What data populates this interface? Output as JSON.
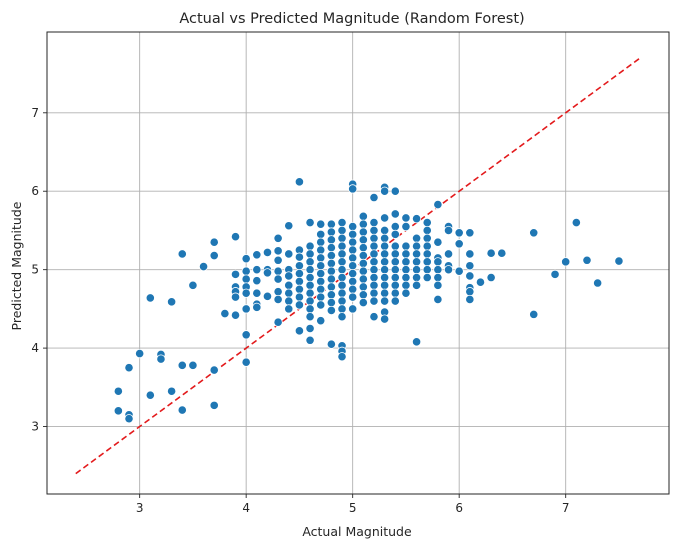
{
  "chart_data": {
    "type": "scatter",
    "title": "Actual vs Predicted Magnitude (Random Forest)",
    "xlabel": "Actual Magnitude",
    "ylabel": "Predicted Magnitude",
    "xlim": [
      2.13,
      7.97
    ],
    "ylim": [
      2.14,
      8.03
    ],
    "xticks": [
      3,
      4,
      5,
      6,
      7
    ],
    "yticks": [
      3,
      4,
      5,
      6,
      7
    ],
    "grid": true,
    "colors": {
      "points": "#1f77b4",
      "reference_line": "#e31a1c",
      "grid": "#b0b0b0"
    },
    "reference_line": {
      "style": "dashed",
      "x": [
        2.4,
        7.7
      ],
      "y": [
        2.4,
        7.7
      ]
    },
    "series": [
      {
        "points": [
          [
            2.8,
            3.45
          ],
          [
            2.8,
            3.2
          ],
          [
            2.9,
            3.15
          ],
          [
            2.9,
            3.1
          ],
          [
            2.9,
            3.75
          ],
          [
            3.0,
            3.93
          ],
          [
            3.1,
            4.64
          ],
          [
            3.1,
            3.4
          ],
          [
            3.2,
            3.92
          ],
          [
            3.2,
            3.86
          ],
          [
            3.3,
            4.59
          ],
          [
            3.3,
            3.45
          ],
          [
            3.4,
            5.2
          ],
          [
            3.4,
            3.78
          ],
          [
            3.4,
            3.21
          ],
          [
            3.5,
            4.8
          ],
          [
            3.5,
            3.78
          ],
          [
            3.6,
            5.04
          ],
          [
            3.7,
            5.35
          ],
          [
            3.7,
            5.18
          ],
          [
            3.7,
            3.72
          ],
          [
            3.7,
            3.27
          ],
          [
            3.8,
            4.44
          ],
          [
            3.9,
            5.42
          ],
          [
            3.9,
            4.94
          ],
          [
            3.9,
            4.78
          ],
          [
            3.9,
            4.72
          ],
          [
            3.9,
            4.65
          ],
          [
            3.9,
            4.42
          ],
          [
            4.0,
            5.14
          ],
          [
            4.0,
            4.98
          ],
          [
            4.0,
            4.88
          ],
          [
            4.0,
            4.78
          ],
          [
            4.0,
            4.7
          ],
          [
            4.0,
            4.5
          ],
          [
            4.0,
            4.17
          ],
          [
            4.0,
            3.82
          ],
          [
            4.1,
            5.19
          ],
          [
            4.1,
            5.0
          ],
          [
            4.1,
            4.86
          ],
          [
            4.1,
            4.7
          ],
          [
            4.1,
            4.56
          ],
          [
            4.1,
            4.52
          ],
          [
            4.2,
            5.22
          ],
          [
            4.2,
            5.0
          ],
          [
            4.2,
            4.96
          ],
          [
            4.2,
            4.66
          ],
          [
            4.3,
            5.4
          ],
          [
            4.3,
            5.24
          ],
          [
            4.3,
            5.12
          ],
          [
            4.3,
            4.98
          ],
          [
            4.3,
            4.88
          ],
          [
            4.3,
            4.72
          ],
          [
            4.3,
            4.62
          ],
          [
            4.3,
            4.33
          ],
          [
            4.4,
            5.56
          ],
          [
            4.4,
            5.2
          ],
          [
            4.4,
            5.0
          ],
          [
            4.4,
            4.92
          ],
          [
            4.4,
            4.8
          ],
          [
            4.4,
            4.7
          ],
          [
            4.4,
            4.6
          ],
          [
            4.4,
            4.5
          ],
          [
            4.5,
            6.12
          ],
          [
            4.5,
            5.25
          ],
          [
            4.5,
            5.16
          ],
          [
            4.5,
            5.05
          ],
          [
            4.5,
            4.95
          ],
          [
            4.5,
            4.85
          ],
          [
            4.5,
            4.75
          ],
          [
            4.5,
            4.65
          ],
          [
            4.5,
            4.55
          ],
          [
            4.5,
            4.22
          ],
          [
            4.6,
            5.6
          ],
          [
            4.6,
            5.3
          ],
          [
            4.6,
            5.2
          ],
          [
            4.6,
            5.1
          ],
          [
            4.6,
            5.0
          ],
          [
            4.6,
            4.9
          ],
          [
            4.6,
            4.8
          ],
          [
            4.6,
            4.7
          ],
          [
            4.6,
            4.6
          ],
          [
            4.6,
            4.5
          ],
          [
            4.6,
            4.4
          ],
          [
            4.6,
            4.25
          ],
          [
            4.6,
            4.1
          ],
          [
            4.7,
            5.58
          ],
          [
            4.7,
            5.45
          ],
          [
            4.7,
            5.35
          ],
          [
            4.7,
            5.25
          ],
          [
            4.7,
            5.15
          ],
          [
            4.7,
            5.05
          ],
          [
            4.7,
            4.95
          ],
          [
            4.7,
            4.85
          ],
          [
            4.7,
            4.75
          ],
          [
            4.7,
            4.65
          ],
          [
            4.7,
            4.55
          ],
          [
            4.7,
            4.35
          ],
          [
            4.8,
            5.58
          ],
          [
            4.8,
            5.48
          ],
          [
            4.8,
            5.38
          ],
          [
            4.8,
            5.28
          ],
          [
            4.8,
            5.18
          ],
          [
            4.8,
            5.08
          ],
          [
            4.8,
            4.98
          ],
          [
            4.8,
            4.88
          ],
          [
            4.8,
            4.78
          ],
          [
            4.8,
            4.68
          ],
          [
            4.8,
            4.58
          ],
          [
            4.8,
            4.48
          ],
          [
            4.8,
            4.05
          ],
          [
            4.9,
            5.6
          ],
          [
            4.9,
            5.5
          ],
          [
            4.9,
            5.4
          ],
          [
            4.9,
            5.3
          ],
          [
            4.9,
            5.2
          ],
          [
            4.9,
            5.1
          ],
          [
            4.9,
            5.0
          ],
          [
            4.9,
            4.9
          ],
          [
            4.9,
            4.8
          ],
          [
            4.9,
            4.7
          ],
          [
            4.9,
            4.6
          ],
          [
            4.9,
            4.5
          ],
          [
            4.9,
            4.4
          ],
          [
            4.9,
            4.03
          ],
          [
            4.9,
            3.96
          ],
          [
            4.9,
            3.89
          ],
          [
            5.0,
            6.09
          ],
          [
            5.0,
            6.03
          ],
          [
            5.0,
            5.55
          ],
          [
            5.0,
            5.45
          ],
          [
            5.0,
            5.35
          ],
          [
            5.0,
            5.25
          ],
          [
            5.0,
            5.15
          ],
          [
            5.0,
            5.05
          ],
          [
            5.0,
            4.95
          ],
          [
            5.0,
            4.85
          ],
          [
            5.0,
            4.75
          ],
          [
            5.0,
            4.65
          ],
          [
            5.0,
            4.5
          ],
          [
            5.1,
            5.68
          ],
          [
            5.1,
            5.58
          ],
          [
            5.1,
            5.48
          ],
          [
            5.1,
            5.38
          ],
          [
            5.1,
            5.28
          ],
          [
            5.1,
            5.18
          ],
          [
            5.1,
            5.08
          ],
          [
            5.1,
            4.98
          ],
          [
            5.1,
            4.88
          ],
          [
            5.1,
            4.78
          ],
          [
            5.1,
            4.68
          ],
          [
            5.1,
            4.58
          ],
          [
            5.2,
            5.92
          ],
          [
            5.2,
            5.6
          ],
          [
            5.2,
            5.5
          ],
          [
            5.2,
            5.4
          ],
          [
            5.2,
            5.3
          ],
          [
            5.2,
            5.2
          ],
          [
            5.2,
            5.1
          ],
          [
            5.2,
            5.0
          ],
          [
            5.2,
            4.9
          ],
          [
            5.2,
            4.8
          ],
          [
            5.2,
            4.7
          ],
          [
            5.2,
            4.6
          ],
          [
            5.2,
            4.4
          ],
          [
            5.3,
            6.05
          ],
          [
            5.3,
            6.0
          ],
          [
            5.3,
            5.66
          ],
          [
            5.3,
            5.5
          ],
          [
            5.3,
            5.4
          ],
          [
            5.3,
            5.3
          ],
          [
            5.3,
            5.2
          ],
          [
            5.3,
            5.1
          ],
          [
            5.3,
            5.0
          ],
          [
            5.3,
            4.9
          ],
          [
            5.3,
            4.8
          ],
          [
            5.3,
            4.7
          ],
          [
            5.3,
            4.6
          ],
          [
            5.3,
            4.46
          ],
          [
            5.3,
            4.37
          ],
          [
            5.4,
            6.0
          ],
          [
            5.4,
            5.71
          ],
          [
            5.4,
            5.55
          ],
          [
            5.4,
            5.45
          ],
          [
            5.4,
            5.3
          ],
          [
            5.4,
            5.2
          ],
          [
            5.4,
            5.1
          ],
          [
            5.4,
            5.0
          ],
          [
            5.4,
            4.9
          ],
          [
            5.4,
            4.8
          ],
          [
            5.4,
            4.7
          ],
          [
            5.4,
            4.6
          ],
          [
            5.5,
            5.66
          ],
          [
            5.5,
            5.55
          ],
          [
            5.5,
            5.3
          ],
          [
            5.5,
            5.2
          ],
          [
            5.5,
            5.1
          ],
          [
            5.5,
            5.0
          ],
          [
            5.5,
            4.9
          ],
          [
            5.5,
            4.8
          ],
          [
            5.5,
            4.7
          ],
          [
            5.6,
            5.65
          ],
          [
            5.6,
            5.4
          ],
          [
            5.6,
            5.3
          ],
          [
            5.6,
            5.2
          ],
          [
            5.6,
            5.1
          ],
          [
            5.6,
            5.0
          ],
          [
            5.6,
            4.9
          ],
          [
            5.6,
            4.8
          ],
          [
            5.6,
            4.08
          ],
          [
            5.7,
            5.6
          ],
          [
            5.7,
            5.5
          ],
          [
            5.7,
            5.4
          ],
          [
            5.7,
            5.3
          ],
          [
            5.7,
            5.2
          ],
          [
            5.7,
            5.1
          ],
          [
            5.7,
            5.0
          ],
          [
            5.7,
            4.9
          ],
          [
            5.8,
            5.83
          ],
          [
            5.8,
            5.35
          ],
          [
            5.8,
            5.15
          ],
          [
            5.8,
            5.1
          ],
          [
            5.8,
            5.0
          ],
          [
            5.8,
            4.9
          ],
          [
            5.8,
            4.8
          ],
          [
            5.8,
            4.62
          ],
          [
            5.9,
            5.55
          ],
          [
            5.9,
            5.5
          ],
          [
            5.9,
            5.2
          ],
          [
            5.9,
            5.05
          ],
          [
            5.9,
            5.0
          ],
          [
            6.0,
            5.47
          ],
          [
            6.0,
            5.33
          ],
          [
            6.0,
            4.98
          ],
          [
            6.1,
            5.47
          ],
          [
            6.1,
            5.2
          ],
          [
            6.1,
            5.05
          ],
          [
            6.1,
            4.92
          ],
          [
            6.1,
            4.77
          ],
          [
            6.1,
            4.72
          ],
          [
            6.1,
            4.62
          ],
          [
            6.2,
            4.84
          ],
          [
            6.3,
            5.21
          ],
          [
            6.3,
            4.9
          ],
          [
            6.4,
            5.21
          ],
          [
            6.7,
            5.47
          ],
          [
            6.7,
            4.43
          ],
          [
            6.9,
            4.94
          ],
          [
            7.0,
            5.1
          ],
          [
            7.1,
            5.6
          ],
          [
            7.2,
            5.12
          ],
          [
            7.3,
            4.83
          ],
          [
            7.5,
            5.11
          ]
        ]
      }
    ]
  }
}
